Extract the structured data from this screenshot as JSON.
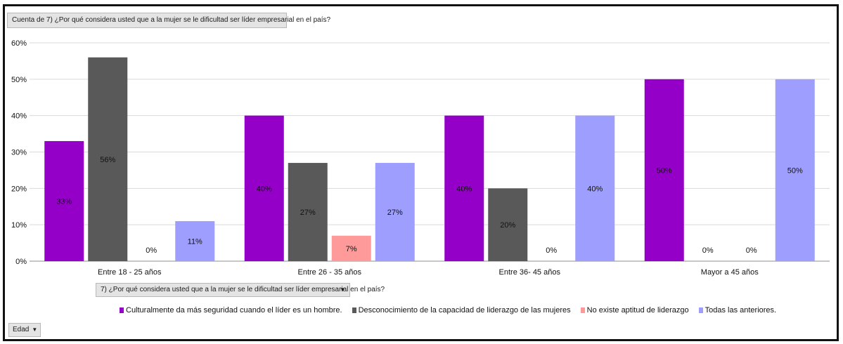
{
  "values_field_label": "Cuenta de 7) ¿Por qué considera usted que a la mujer se le dificultad ser líder empresarial en el país?",
  "legend_field_label": "7) ¿Por qué considera usted que a la mujer se le dificultad ser líder empresarial en el país?",
  "axis_field_label": "Edad",
  "dropdown_icon": "caret-down-icon",
  "chart_data": {
    "type": "bar",
    "categories": [
      "Entre 18 - 25 años",
      "Entre 26 - 35 años",
      "Entre 36- 45 años",
      "Mayor a 45 años"
    ],
    "series": [
      {
        "name": "Culturalmente da más seguridad cuando el líder es un hombre.",
        "values": [
          33,
          40,
          40,
          50
        ],
        "labels": [
          "33%",
          "40%",
          "40%",
          "50%"
        ],
        "color": "#9400c8"
      },
      {
        "name": "Desconocimiento de la capacidad de liderazgo de las mujeres",
        "values": [
          56,
          27,
          20,
          0
        ],
        "labels": [
          "56%",
          "27%",
          "20%",
          "0%"
        ],
        "color": "#595959"
      },
      {
        "name": "No existe aptitud de liderazgo",
        "values": [
          0,
          7,
          0,
          0
        ],
        "labels": [
          "0%",
          "7%",
          "0%",
          "0%"
        ],
        "color": "#ff9a9a"
      },
      {
        "name": "Todas las anteriores.",
        "values": [
          11,
          27,
          40,
          50
        ],
        "labels": [
          "11%",
          "27%",
          "40%",
          "50%"
        ],
        "color": "#9e9eff"
      }
    ],
    "y_ticks": [
      "0%",
      "10%",
      "20%",
      "30%",
      "40%",
      "50%",
      "60%"
    ],
    "ylim": [
      0,
      60
    ],
    "grid": true,
    "legend_position": "bottom"
  }
}
